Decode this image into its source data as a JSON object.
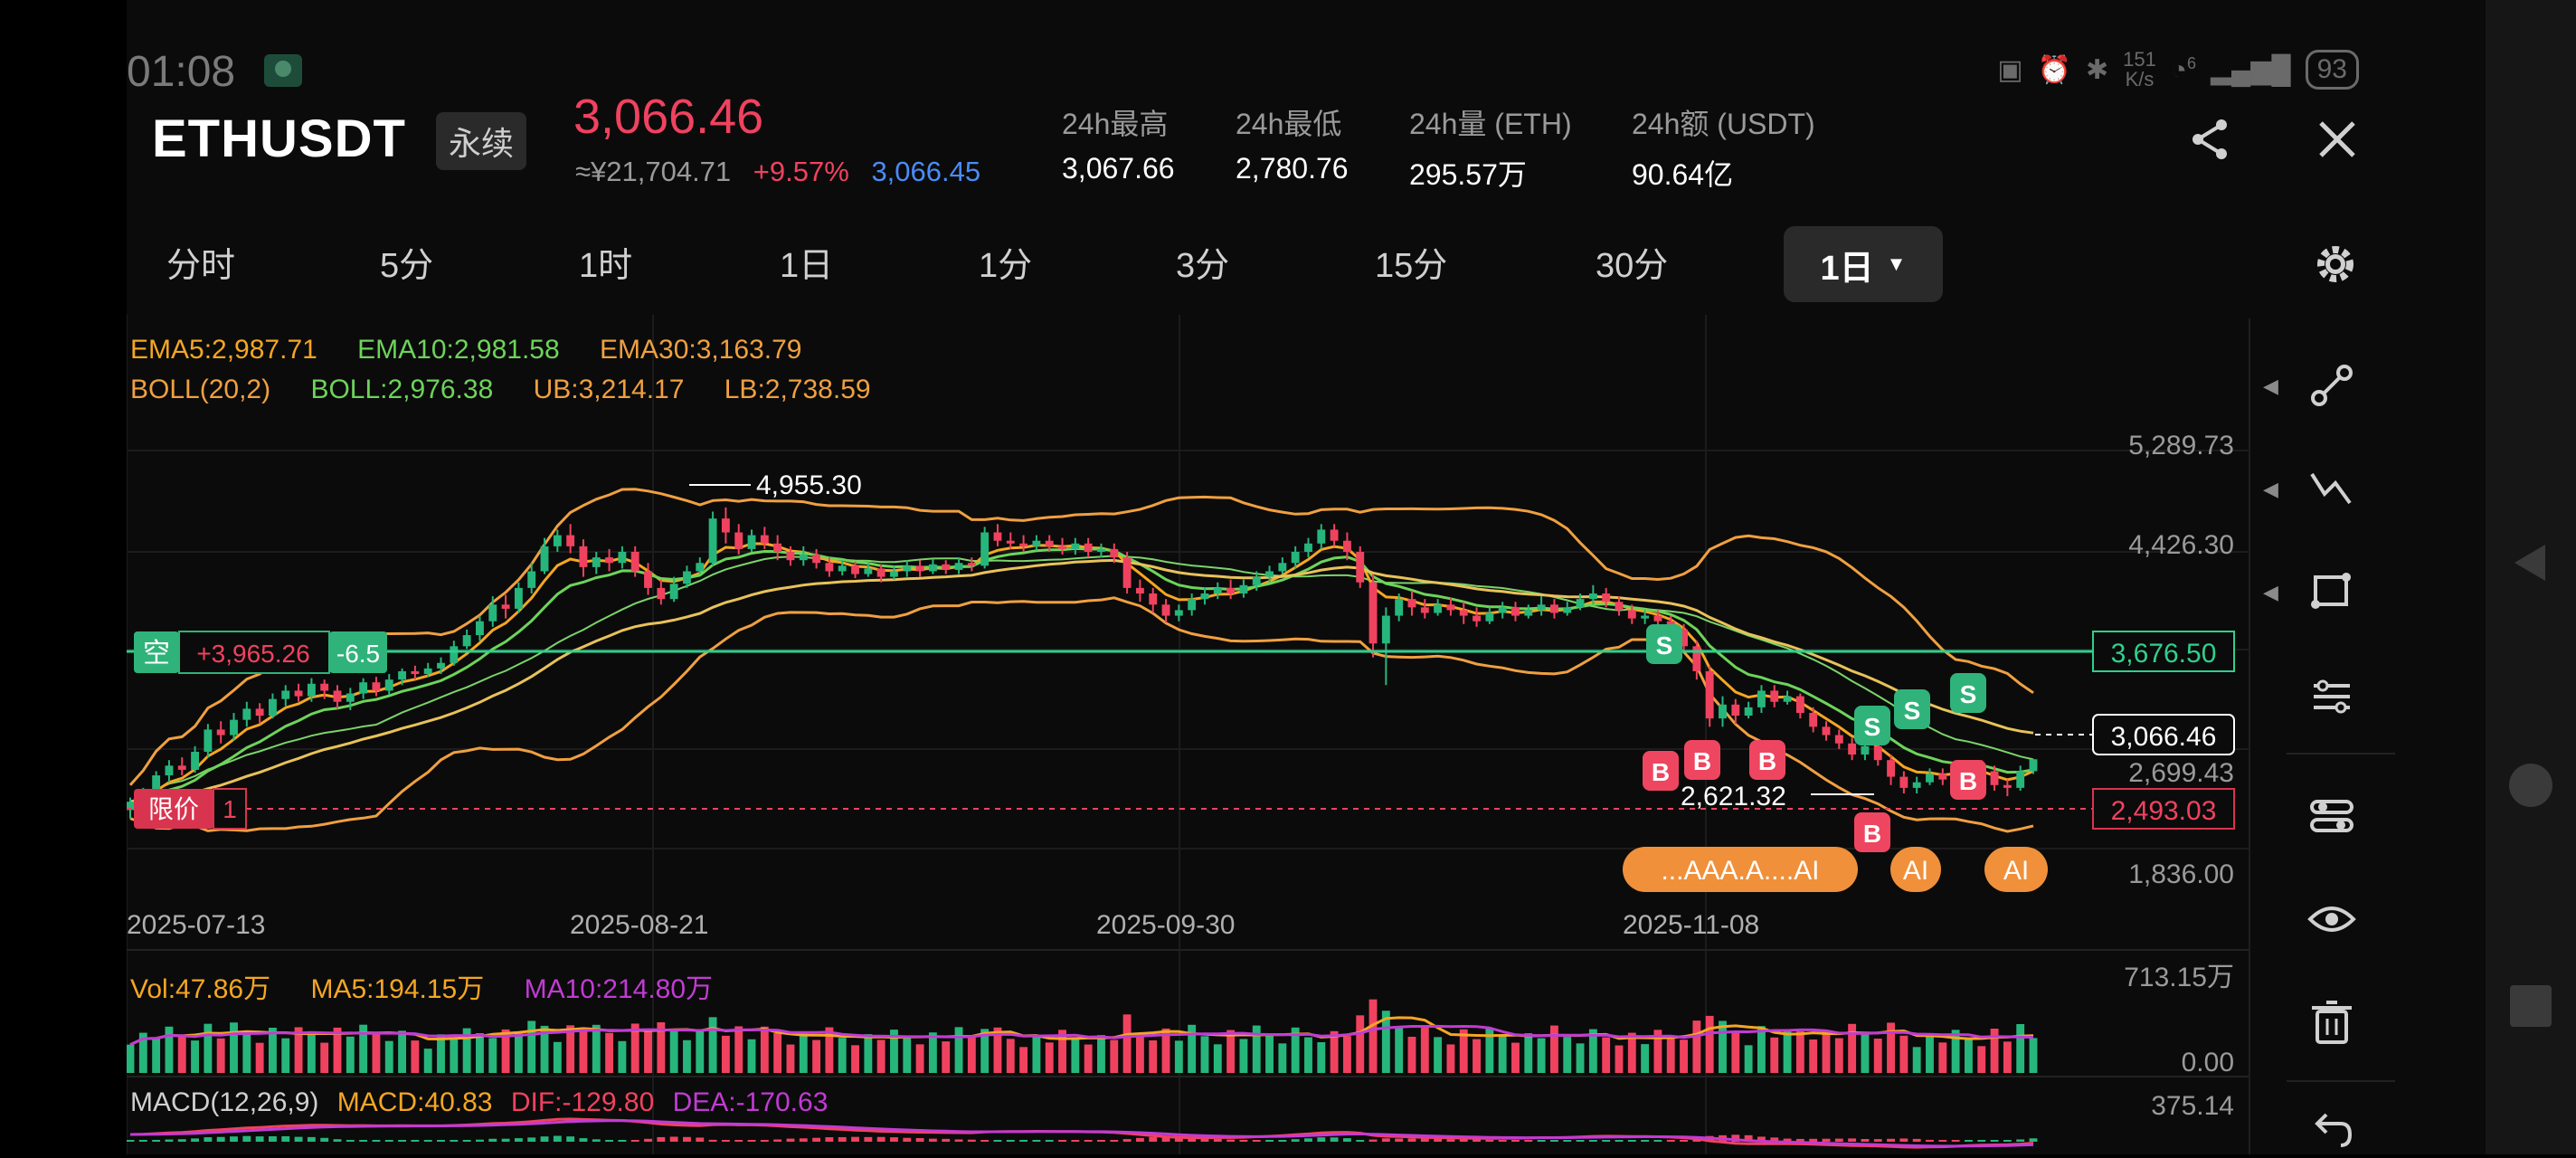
{
  "status_bar": {
    "time": "01:08",
    "speed_top": "151",
    "speed_bottom": "K/s",
    "battery": "93",
    "signal_label": "6"
  },
  "header": {
    "symbol": "ETHUSDT",
    "contract_type": "永续",
    "last_price": "3,066.46",
    "cny_price": "≈¥21,704.71",
    "change_pct": "+9.57%",
    "mark_price": "3,066.45",
    "stats": [
      {
        "label": "24h最高",
        "value": "3,067.66"
      },
      {
        "label": "24h最低",
        "value": "2,780.76"
      },
      {
        "label": "24h量 (ETH)",
        "value": "295.57万"
      },
      {
        "label": "24h额 (USDT)",
        "value": "90.64亿"
      }
    ]
  },
  "timeframes": [
    "分时",
    "5分",
    "1时",
    "1日",
    "1分",
    "3分",
    "15分",
    "30分"
  ],
  "active_timeframe": "1日",
  "indicators": {
    "ema5": "EMA5:2,987.71",
    "ema10": "EMA10:2,981.58",
    "ema30": "EMA30:3,163.79",
    "boll": "BOLL(20,2)",
    "boll_mid": "BOLL:2,976.38",
    "ub": "UB:3,214.17",
    "lb": "LB:2,738.59"
  },
  "volume": {
    "vol": "Vol:47.86万",
    "ma5": "MA5:194.15万",
    "ma10": "MA10:214.80万",
    "axis_top": "713.15万",
    "axis_zero": "0.00"
  },
  "macd": {
    "label": "MACD(12,26,9)",
    "macd": "MACD:40.83",
    "dif": "DIF:-129.80",
    "dea": "DEA:-170.63",
    "axis_top": "375.14"
  },
  "colors": {
    "up": "#26b67c",
    "down": "#f0425f",
    "ema5": "#f5a623",
    "ema10": "#6dd45a",
    "ema30": "#f0a040",
    "boll": "#f0a040",
    "magenta": "#c23bd4",
    "blue": "#4a8cf7"
  },
  "chart_data": {
    "type": "candlestick",
    "x_labels": [
      "2025-07-13",
      "2025-08-21",
      "2025-09-30",
      "2025-11-08"
    ],
    "y_labels": [
      "5,289.73",
      "4,426.30",
      "3,676.50",
      "2,699.43",
      "1,836.00"
    ],
    "y_range": [
      1836.0,
      5289.73
    ],
    "max_label": "4,955.30",
    "min_label": "2,621.32",
    "position": {
      "side": "空",
      "pnl": "+3,965.26",
      "size": "-6.5",
      "price": "3,676.50"
    },
    "limit_order": {
      "label": "限价",
      "count": "1",
      "price": "2,493.03"
    },
    "current_price": "3,066.46",
    "signals": {
      "buy": "B",
      "sell": "S",
      "ai": "AI",
      "ai_cluster": "...AAA.A....AI"
    },
    "candles": [
      [
        2700,
        2760,
        2640,
        2790
      ],
      [
        2760,
        2830,
        2720,
        2860
      ],
      [
        2830,
        2950,
        2800,
        2980
      ],
      [
        2950,
        3020,
        2900,
        3060
      ],
      [
        3020,
        2990,
        2950,
        3080
      ],
      [
        2990,
        3120,
        2970,
        3160
      ],
      [
        3120,
        3280,
        3080,
        3320
      ],
      [
        3280,
        3240,
        3180,
        3340
      ],
      [
        3240,
        3350,
        3200,
        3400
      ],
      [
        3350,
        3430,
        3300,
        3480
      ],
      [
        3430,
        3380,
        3320,
        3470
      ],
      [
        3380,
        3500,
        3360,
        3540
      ],
      [
        3500,
        3560,
        3450,
        3600
      ],
      [
        3560,
        3520,
        3480,
        3610
      ],
      [
        3520,
        3610,
        3480,
        3650
      ],
      [
        3610,
        3560,
        3500,
        3640
      ],
      [
        3560,
        3480,
        3430,
        3600
      ],
      [
        3480,
        3540,
        3420,
        3580
      ],
      [
        3540,
        3620,
        3500,
        3650
      ],
      [
        3620,
        3560,
        3520,
        3660
      ],
      [
        3560,
        3640,
        3530,
        3680
      ],
      [
        3640,
        3700,
        3600,
        3720
      ],
      [
        3700,
        3680,
        3640,
        3740
      ],
      [
        3680,
        3720,
        3660,
        3760
      ],
      [
        3720,
        3760,
        3680,
        3800
      ],
      [
        3760,
        3880,
        3740,
        3920
      ],
      [
        3880,
        3960,
        3860,
        4000
      ],
      [
        3960,
        4060,
        3920,
        4100
      ],
      [
        4060,
        4180,
        4020,
        4240
      ],
      [
        4180,
        4150,
        4080,
        4250
      ],
      [
        4150,
        4300,
        4120,
        4340
      ],
      [
        4300,
        4420,
        4260,
        4480
      ],
      [
        4420,
        4600,
        4400,
        4660
      ],
      [
        4600,
        4680,
        4560,
        4720
      ],
      [
        4680,
        4600,
        4550,
        4760
      ],
      [
        4600,
        4450,
        4380,
        4650
      ],
      [
        4450,
        4520,
        4400,
        4560
      ],
      [
        4520,
        4480,
        4420,
        4580
      ],
      [
        4480,
        4560,
        4440,
        4600
      ],
      [
        4560,
        4420,
        4380,
        4600
      ],
      [
        4420,
        4300,
        4250,
        4480
      ],
      [
        4300,
        4220,
        4180,
        4360
      ],
      [
        4220,
        4330,
        4200,
        4380
      ],
      [
        4330,
        4420,
        4300,
        4460
      ],
      [
        4420,
        4480,
        4400,
        4520
      ],
      [
        4480,
        4800,
        4460,
        4850
      ],
      [
        4800,
        4700,
        4620,
        4880
      ],
      [
        4700,
        4580,
        4540,
        4760
      ],
      [
        4580,
        4680,
        4560,
        4720
      ],
      [
        4680,
        4620,
        4580,
        4740
      ],
      [
        4620,
        4560,
        4500,
        4680
      ],
      [
        4560,
        4500,
        4460,
        4600
      ],
      [
        4500,
        4540,
        4460,
        4600
      ],
      [
        4540,
        4480,
        4440,
        4580
      ],
      [
        4480,
        4420,
        4380,
        4520
      ],
      [
        4420,
        4460,
        4390,
        4500
      ],
      [
        4460,
        4400,
        4370,
        4490
      ],
      [
        4400,
        4440,
        4380,
        4480
      ],
      [
        4440,
        4380,
        4340,
        4470
      ],
      [
        4380,
        4420,
        4360,
        4460
      ],
      [
        4420,
        4460,
        4380,
        4500
      ],
      [
        4460,
        4420,
        4380,
        4500
      ],
      [
        4420,
        4470,
        4400,
        4510
      ],
      [
        4470,
        4430,
        4400,
        4500
      ],
      [
        4430,
        4480,
        4400,
        4520
      ],
      [
        4480,
        4460,
        4420,
        4520
      ],
      [
        4460,
        4700,
        4440,
        4740
      ],
      [
        4700,
        4640,
        4600,
        4760
      ],
      [
        4640,
        4620,
        4580,
        4700
      ],
      [
        4620,
        4600,
        4560,
        4680
      ],
      [
        4600,
        4640,
        4570,
        4680
      ],
      [
        4640,
        4600,
        4560,
        4680
      ],
      [
        4600,
        4580,
        4540,
        4660
      ],
      [
        4580,
        4620,
        4540,
        4660
      ],
      [
        4620,
        4560,
        4520,
        4660
      ],
      [
        4560,
        4580,
        4520,
        4620
      ],
      [
        4580,
        4520,
        4480,
        4620
      ],
      [
        4520,
        4300,
        4260,
        4560
      ],
      [
        4300,
        4260,
        4200,
        4360
      ],
      [
        4260,
        4180,
        4120,
        4300
      ],
      [
        4180,
        4100,
        4050,
        4220
      ],
      [
        4100,
        4140,
        4060,
        4180
      ],
      [
        4140,
        4220,
        4100,
        4260
      ],
      [
        4220,
        4260,
        4180,
        4300
      ],
      [
        4260,
        4300,
        4220,
        4340
      ],
      [
        4300,
        4260,
        4220,
        4360
      ],
      [
        4260,
        4320,
        4230,
        4360
      ],
      [
        4320,
        4380,
        4280,
        4420
      ],
      [
        4380,
        4420,
        4340,
        4460
      ],
      [
        4420,
        4480,
        4400,
        4520
      ],
      [
        4480,
        4560,
        4440,
        4600
      ],
      [
        4560,
        4620,
        4520,
        4660
      ],
      [
        4620,
        4720,
        4580,
        4760
      ],
      [
        4720,
        4640,
        4600,
        4760
      ],
      [
        4640,
        4560,
        4500,
        4700
      ],
      [
        4560,
        4340,
        4300,
        4600
      ],
      [
        4340,
        3900,
        3800,
        4400
      ],
      [
        3900,
        4100,
        3600,
        4160
      ],
      [
        4100,
        4220,
        4060,
        4260
      ],
      [
        4220,
        4160,
        4100,
        4280
      ],
      [
        4160,
        4120,
        4080,
        4220
      ],
      [
        4120,
        4180,
        4100,
        4220
      ],
      [
        4180,
        4140,
        4100,
        4230
      ],
      [
        4140,
        4100,
        4040,
        4200
      ],
      [
        4100,
        4060,
        4020,
        4160
      ],
      [
        4060,
        4120,
        4040,
        4160
      ],
      [
        4120,
        4160,
        4080,
        4200
      ],
      [
        4160,
        4100,
        4060,
        4200
      ],
      [
        4100,
        4140,
        4080,
        4180
      ],
      [
        4140,
        4180,
        4100,
        4240
      ],
      [
        4180,
        4120,
        4080,
        4220
      ],
      [
        4120,
        4160,
        4100,
        4200
      ],
      [
        4160,
        4220,
        4140,
        4260
      ],
      [
        4220,
        4260,
        4180,
        4320
      ],
      [
        4260,
        4200,
        4160,
        4300
      ],
      [
        4200,
        4140,
        4100,
        4240
      ],
      [
        4140,
        4080,
        4040,
        4180
      ],
      [
        4080,
        4100,
        4040,
        4140
      ],
      [
        4100,
        4060,
        4020,
        4140
      ],
      [
        4060,
        4000,
        3960,
        4100
      ],
      [
        4000,
        3880,
        3840,
        4040
      ],
      [
        3880,
        3700,
        3640,
        3920
      ],
      [
        3700,
        3360,
        3300,
        3740
      ],
      [
        3360,
        3460,
        3300,
        3520
      ],
      [
        3460,
        3380,
        3320,
        3500
      ],
      [
        3380,
        3440,
        3360,
        3480
      ],
      [
        3440,
        3560,
        3400,
        3600
      ],
      [
        3560,
        3480,
        3440,
        3600
      ],
      [
        3480,
        3520,
        3460,
        3560
      ],
      [
        3520,
        3400,
        3360,
        3540
      ],
      [
        3400,
        3300,
        3260,
        3440
      ],
      [
        3300,
        3240,
        3200,
        3340
      ],
      [
        3240,
        3180,
        3140,
        3280
      ],
      [
        3180,
        3100,
        3060,
        3220
      ],
      [
        3100,
        3160,
        3060,
        3200
      ],
      [
        3160,
        3060,
        3020,
        3200
      ],
      [
        3060,
        2940,
        2880,
        3100
      ],
      [
        2940,
        2860,
        2820,
        2980
      ],
      [
        2860,
        2900,
        2820,
        2940
      ],
      [
        2900,
        2960,
        2880,
        3000
      ],
      [
        2960,
        2920,
        2880,
        3000
      ],
      [
        2920,
        2980,
        2900,
        3020
      ],
      [
        2980,
        3020,
        2960,
        3060
      ],
      [
        3020,
        2980,
        2940,
        3060
      ],
      [
        2980,
        2880,
        2840,
        3020
      ],
      [
        2880,
        2860,
        2800,
        2920
      ],
      [
        2860,
        2980,
        2840,
        3020
      ],
      [
        2980,
        3066,
        2960,
        3068
      ]
    ]
  }
}
